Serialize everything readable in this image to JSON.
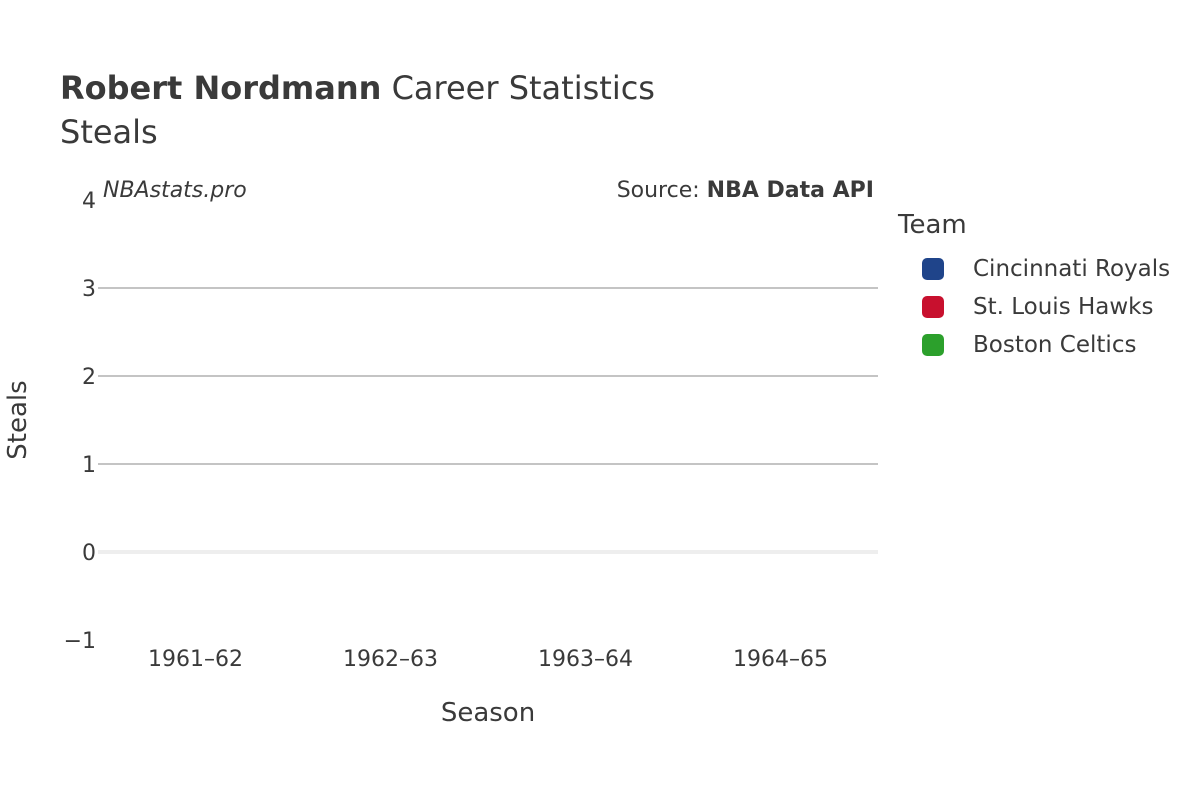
{
  "header": {
    "title_bold": "Robert Nordmann",
    "title_rest": " Career Statistics",
    "subtitle": "Steals",
    "watermark": "NBAstats.pro",
    "source_prefix": "Source: ",
    "source_bold": "NBA Data API"
  },
  "chart_data": {
    "type": "bar",
    "title": "Robert Nordmann Career Statistics",
    "subtitle": "Steals",
    "xlabel": "Season",
    "ylabel": "Steals",
    "categories": [
      "1961–62",
      "1962–63",
      "1963–64",
      "1964–65"
    ],
    "ylim": [
      -1,
      4
    ],
    "yticks": [
      -1,
      0,
      1,
      2,
      3,
      4
    ],
    "ytick_labels": [
      "−1",
      "0",
      "1",
      "2",
      "3",
      "4"
    ],
    "grid": true,
    "legend_title": "Team",
    "legend_position": "right",
    "series": [
      {
        "name": "Cincinnati Royals",
        "color": "#1f448a",
        "values": [
          null,
          null,
          null,
          null
        ]
      },
      {
        "name": "St. Louis Hawks",
        "color": "#c8102e",
        "values": [
          null,
          null,
          null,
          null
        ]
      },
      {
        "name": "Boston Celtics",
        "color": "#2ca02c",
        "values": [
          null,
          null,
          null,
          null
        ]
      }
    ]
  }
}
